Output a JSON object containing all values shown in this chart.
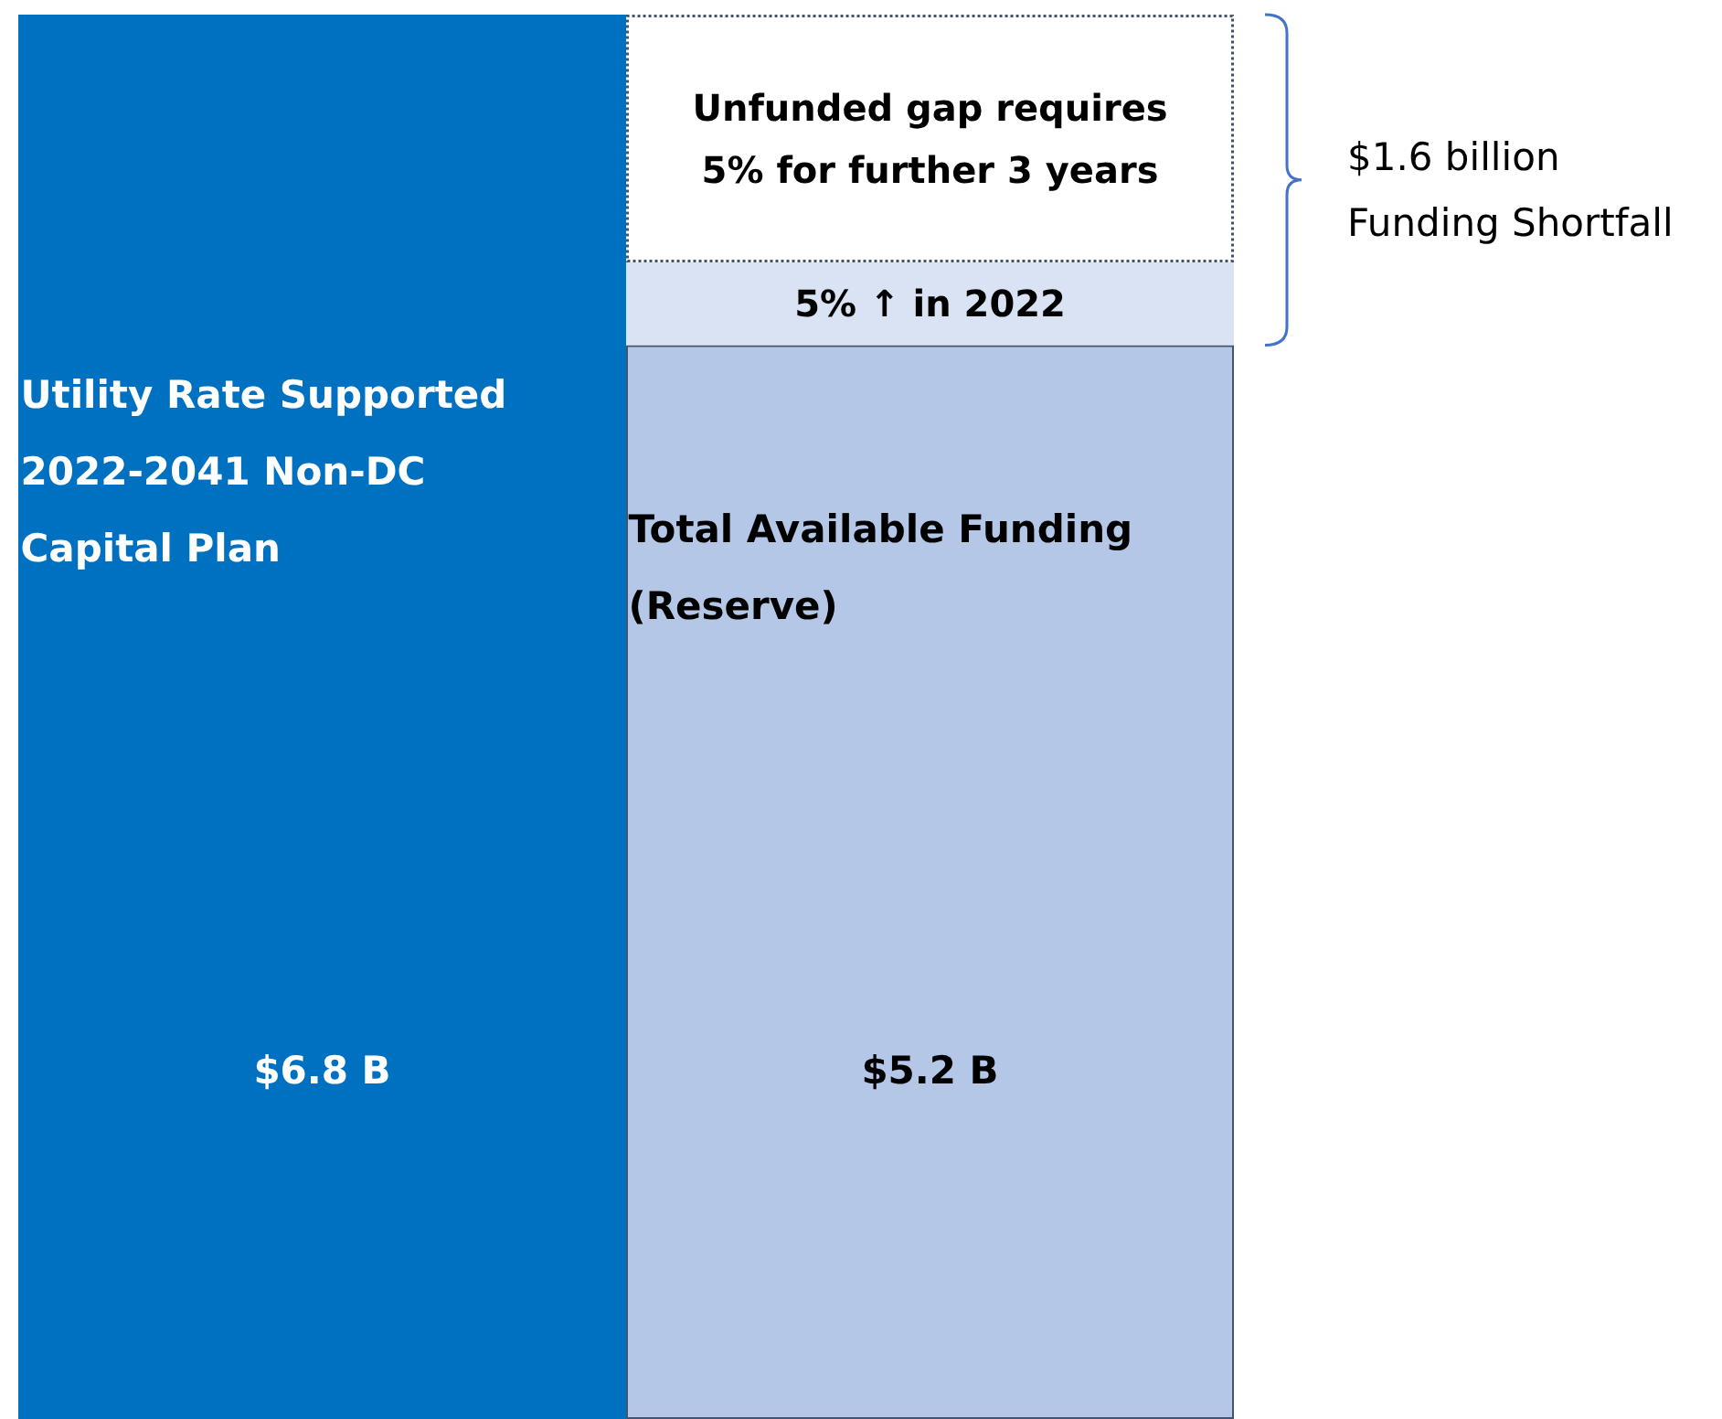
{
  "chart_data": {
    "type": "bar",
    "stacked": true,
    "categories": [
      "Utility Rate Supported\n2022-2041 Non-DC\nCapital Plan",
      "Total Available Funding\n(Reserve)"
    ],
    "series": [
      {
        "colors": [
          "#0070c0",
          "#b4c7e7"
        ],
        "values": [
          6.8,
          5.2
        ],
        "value_labels": [
          "$6.8 B",
          "$5.2 B"
        ]
      },
      {
        "name": "5% ↑ in 2022",
        "color": "#dae3f3",
        "values": [
          null,
          0.4
        ]
      },
      {
        "name": "Unfunded gap requires\n5% for further 3 years",
        "color": "#ffffff",
        "line_style": "dotted",
        "values": [
          null,
          1.2
        ]
      }
    ],
    "annotations": [
      "$1.6 billion\nFunding Shortfall"
    ]
  }
}
